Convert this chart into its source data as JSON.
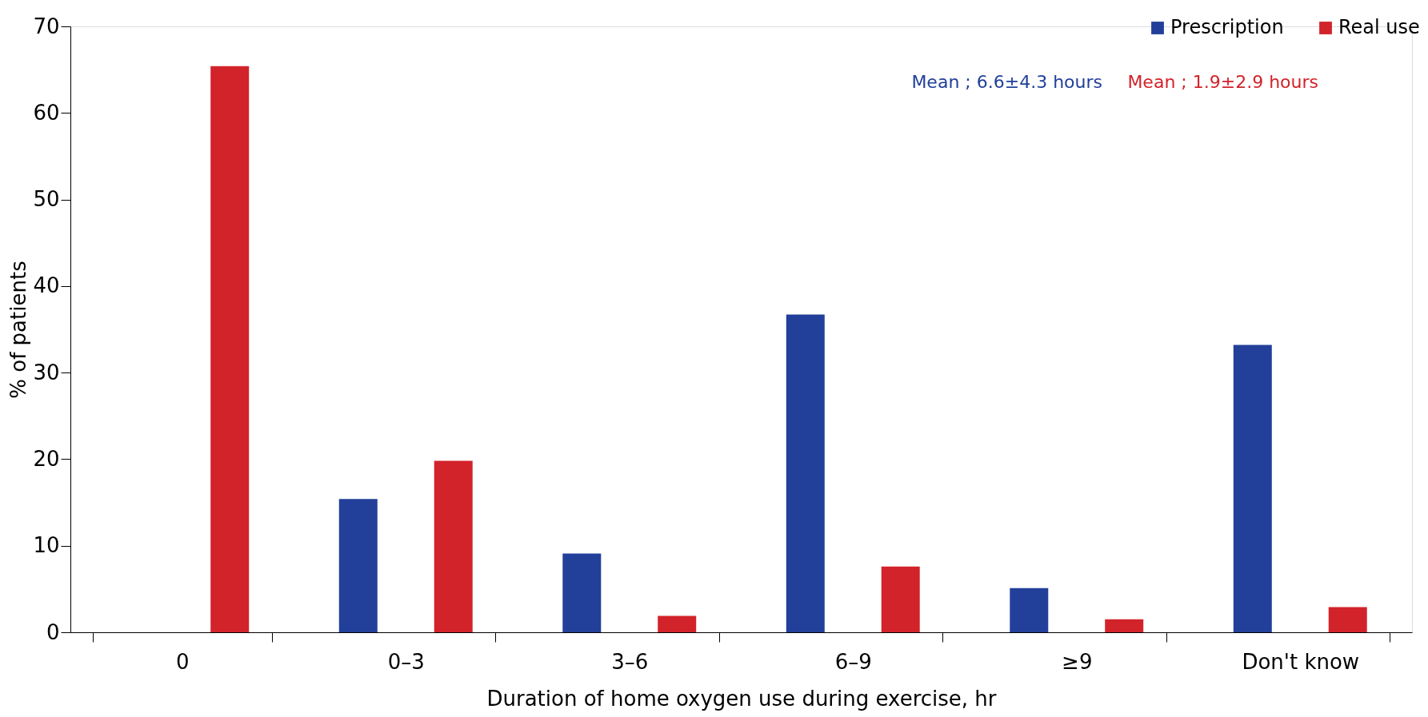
{
  "chart_data": {
    "type": "bar",
    "xlabel": "Duration of home oxygen use during exercise, hr",
    "ylabel": "% of patients",
    "categories": [
      "0",
      "0–3",
      "3–6",
      "6–9",
      "≥9",
      "Don't know"
    ],
    "series": [
      {
        "name": "Prescription",
        "color": "#22409a",
        "values": [
          null,
          15.4,
          9.1,
          36.7,
          5.1,
          33.2
        ]
      },
      {
        "name": "Real use",
        "color": "#d2232a",
        "values": [
          65.4,
          19.8,
          1.9,
          7.6,
          1.5,
          2.9
        ]
      }
    ],
    "ylim": [
      0,
      70
    ],
    "yticks": [
      0,
      10,
      20,
      30,
      40,
      50,
      60,
      70
    ],
    "grid": false,
    "legend": "top right",
    "annotations": [
      "Mean ; 6.6±4.3 hours",
      "Mean ; 1.9±2.9 hours"
    ]
  }
}
